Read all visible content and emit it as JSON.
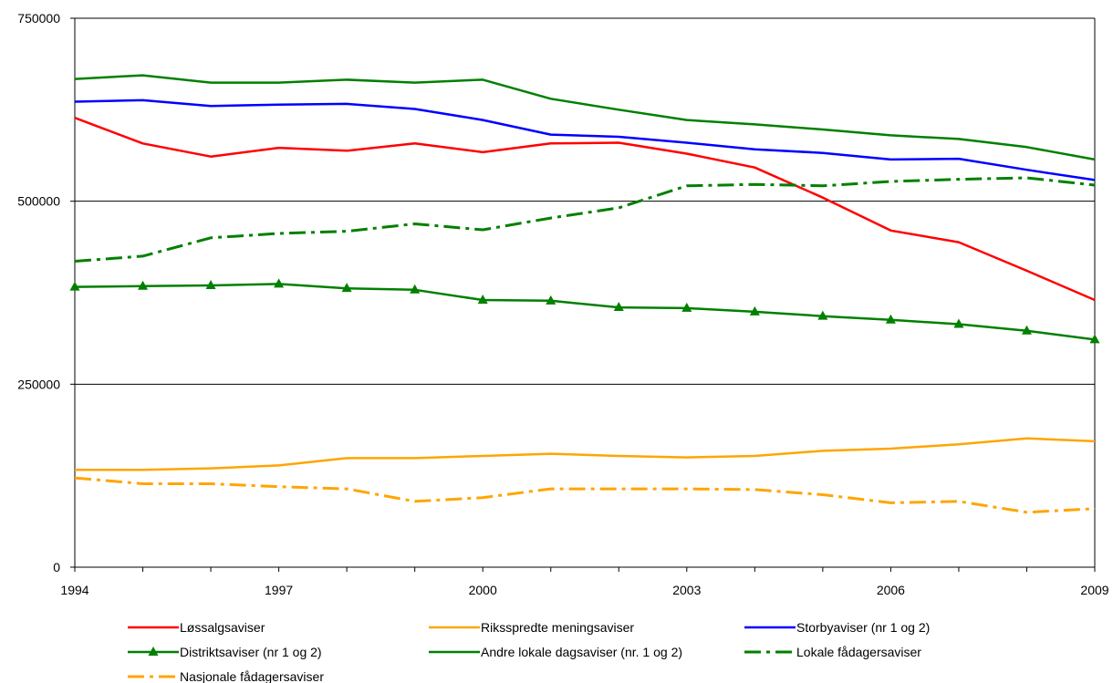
{
  "chart_data": {
    "type": "line",
    "title": "",
    "xlabel": "",
    "ylabel": "",
    "x": [
      1994,
      1995,
      1996,
      1997,
      1998,
      1999,
      2000,
      2001,
      2002,
      2003,
      2004,
      2005,
      2006,
      2007,
      2008,
      2009
    ],
    "xlim": [
      1994,
      2009
    ],
    "ylim": [
      0,
      750000
    ],
    "x_ticks": [
      "1994",
      "1997",
      "2000",
      "2003",
      "2006",
      "2009"
    ],
    "y_ticks": [
      "0",
      "250000",
      "500000",
      "750000"
    ],
    "grid": "horizontal",
    "legend_position": "bottom",
    "series": [
      {
        "name": "Løssalgsaviser",
        "color": "#ff0000",
        "style": "solid",
        "marker": "none",
        "values": [
          614000,
          579000,
          561000,
          573000,
          569000,
          579000,
          567000,
          579000,
          580000,
          565000,
          546000,
          505000,
          460000,
          444000,
          405000,
          365000
        ]
      },
      {
        "name": "Riksspredte meningsaviser",
        "color": "#ffa500",
        "style": "solid",
        "marker": "none",
        "values": [
          133000,
          133000,
          135000,
          139000,
          149000,
          149000,
          152000,
          155000,
          152000,
          150000,
          152000,
          159000,
          162000,
          168000,
          176000,
          172000
        ]
      },
      {
        "name": "Storbyaviser (nr 1 og 2)",
        "color": "#0000ff",
        "style": "solid",
        "marker": "none",
        "values": [
          636000,
          638000,
          630000,
          632000,
          633000,
          626000,
          611000,
          591000,
          588000,
          580000,
          571000,
          566000,
          557000,
          558000,
          543000,
          529000
        ]
      },
      {
        "name": "Distriktsaviser (nr 1 og 2)",
        "color": "#008000",
        "style": "solid",
        "marker": "triangle",
        "values": [
          383000,
          384000,
          385000,
          387000,
          381000,
          379000,
          365000,
          364000,
          355000,
          354000,
          349000,
          343000,
          338000,
          332000,
          323000,
          311000
        ]
      },
      {
        "name": "Andre lokale dagsaviser (nr. 1 og 2)",
        "color": "#008000",
        "style": "solid",
        "marker": "none",
        "values": [
          667000,
          672000,
          662000,
          662000,
          666000,
          662000,
          666000,
          640000,
          625000,
          611000,
          605000,
          598000,
          590000,
          585000,
          574000,
          557000
        ]
      },
      {
        "name": "Lokale fådagersaviser",
        "color": "#008000",
        "style": "dashdot",
        "marker": "none",
        "values": [
          418000,
          425000,
          450000,
          456000,
          459000,
          469000,
          461000,
          477000,
          491000,
          521000,
          523000,
          521000,
          527000,
          530000,
          532000,
          522000
        ]
      },
      {
        "name": "Nasjonale fådagersaviser",
        "color": "#ffa500",
        "style": "dashdot",
        "marker": "none",
        "values": [
          122000,
          114000,
          114000,
          110000,
          107000,
          90000,
          95000,
          107000,
          107000,
          107000,
          106000,
          99000,
          88000,
          90000,
          75000,
          80000
        ]
      }
    ]
  }
}
